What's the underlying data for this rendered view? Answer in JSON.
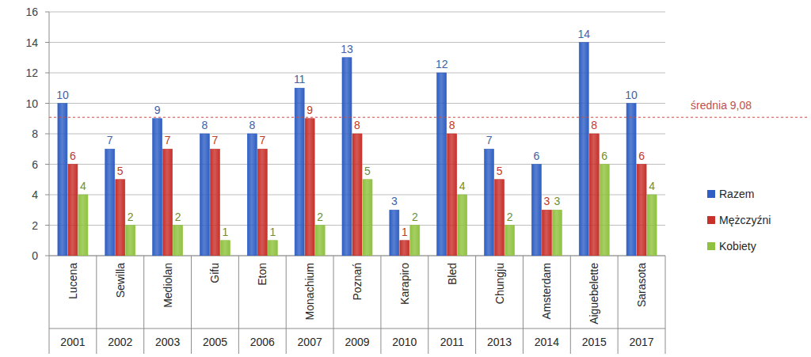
{
  "chart_data": {
    "type": "bar",
    "categories": [
      "Lucena",
      "Sewilla",
      "Mediolan",
      "Gifu",
      "Eton",
      "Monachium",
      "Poznań",
      "Karapiro",
      "Bled",
      "Chungju",
      "Amsterdam",
      "Aiguebelette",
      "Sarasota"
    ],
    "category_years": [
      "2001",
      "2002",
      "2003",
      "2005",
      "2006",
      "2007",
      "2009",
      "2010",
      "2011",
      "2013",
      "2014",
      "2015",
      "2017"
    ],
    "series": [
      {
        "name": "Razem",
        "color": "#2f5fc4",
        "values": [
          10,
          7,
          9,
          8,
          8,
          11,
          13,
          3,
          12,
          7,
          6,
          14,
          10
        ]
      },
      {
        "name": "Mężczyźni",
        "color": "#c8302a",
        "values": [
          6,
          5,
          7,
          7,
          7,
          9,
          8,
          1,
          8,
          5,
          3,
          8,
          6
        ]
      },
      {
        "name": "Kobiety",
        "color": "#8fc23f",
        "values": [
          4,
          2,
          2,
          1,
          1,
          2,
          5,
          2,
          4,
          2,
          3,
          6,
          4
        ]
      }
    ],
    "ylim": [
      0,
      16
    ],
    "yticks": [
      0,
      2,
      4,
      6,
      8,
      10,
      12,
      14,
      16
    ],
    "grid": true,
    "data_labels": true,
    "legend": "right",
    "annotations": [
      {
        "value": 9.08,
        "label": "średnia 9,08",
        "color": "#c0504d",
        "line_style": "dashed"
      }
    ]
  }
}
